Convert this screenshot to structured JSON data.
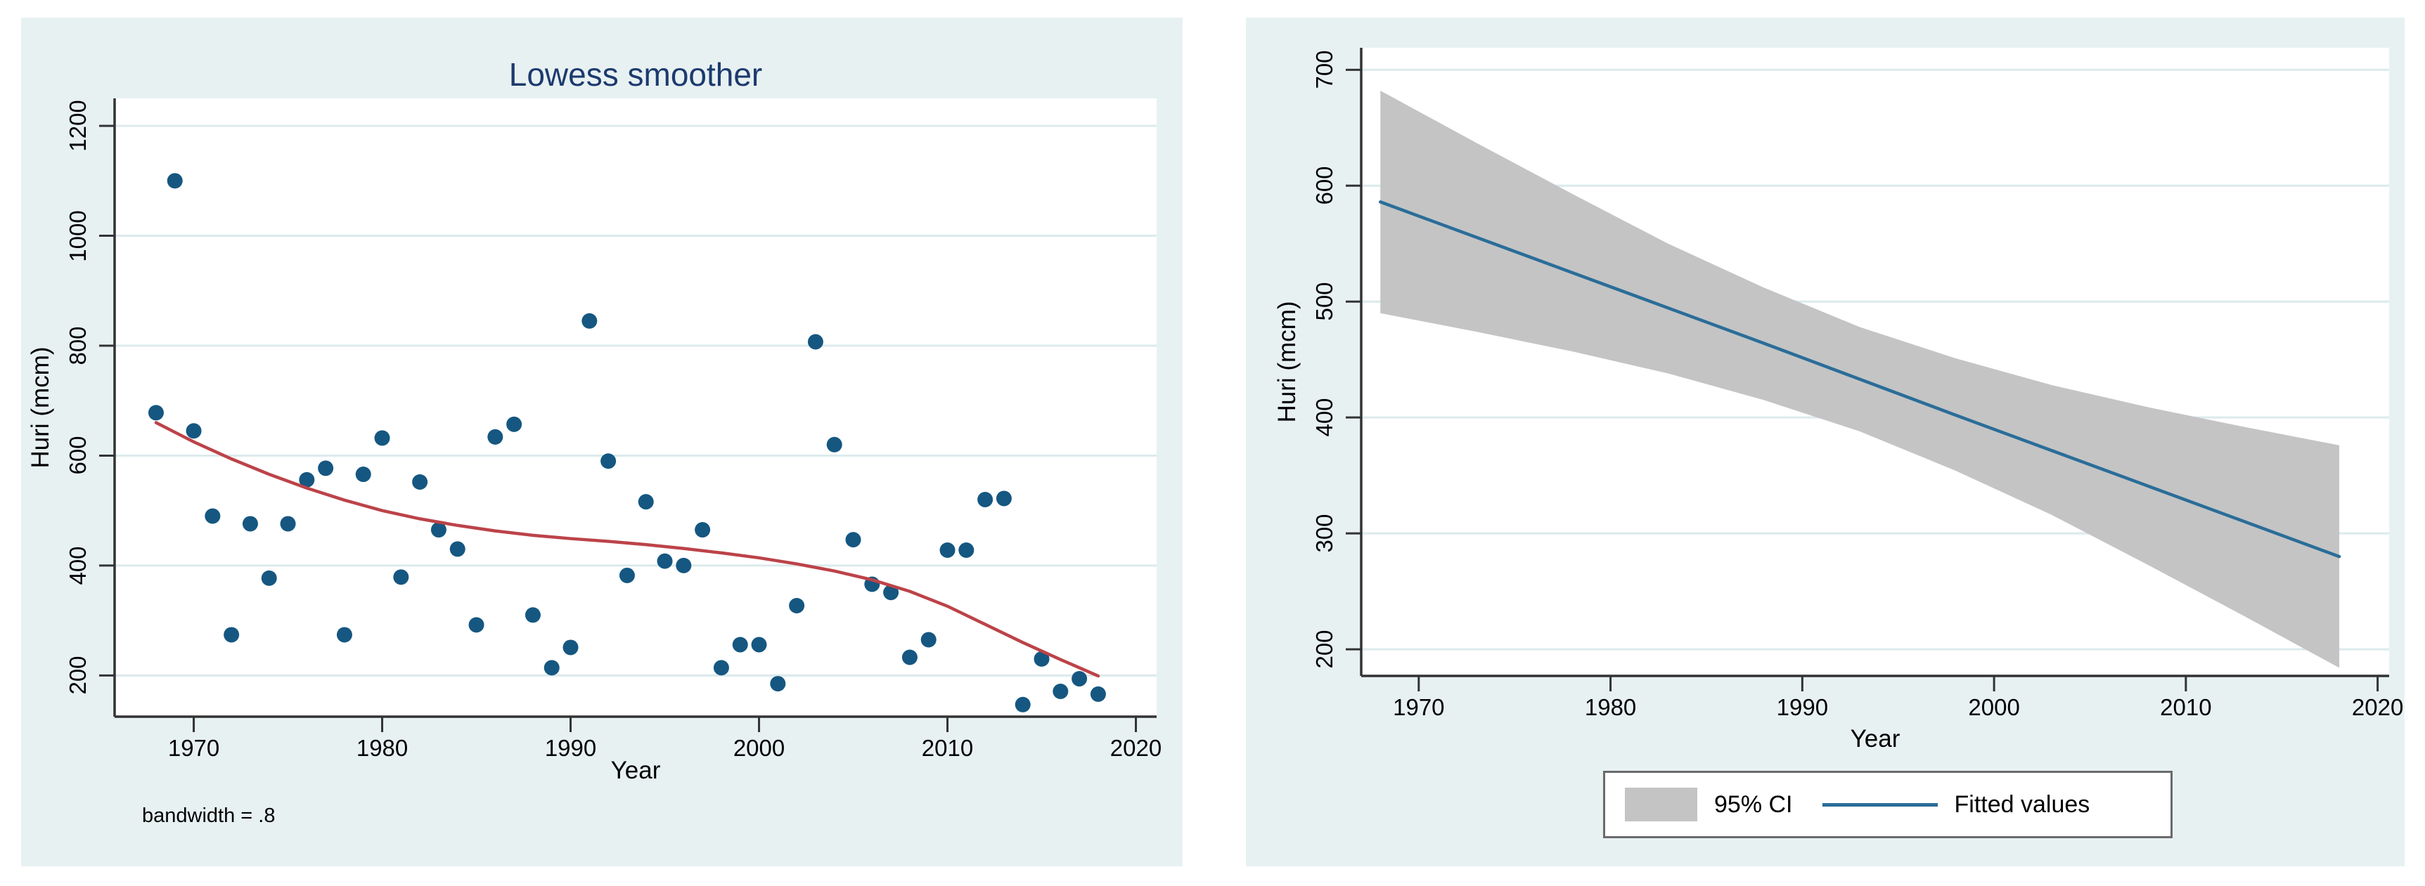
{
  "figure": {
    "background": "#ffffff",
    "panel_background": "#e8f1f2"
  },
  "colors": {
    "marker": "#155781",
    "lowess_line": "#bc4349",
    "fitted_line": "#2a6d99",
    "ci_fill": "#c4c4c4",
    "grid": "#dceaec",
    "axis": "#333333",
    "title_text": "#1c3a6e",
    "legend_border": "#6a6a6a"
  },
  "chart_data": [
    {
      "type": "scatter",
      "title": "Lowess smoother",
      "xlabel": "Year",
      "ylabel": "Huri (mcm)",
      "note": "bandwidth = .8",
      "xlim": [
        1965.8,
        2021.1
      ],
      "ylim": [
        125,
        1250
      ],
      "x_ticks": [
        1970,
        1980,
        1990,
        2000,
        2010,
        2020
      ],
      "y_ticks": [
        200,
        400,
        600,
        800,
        1000,
        1200
      ],
      "grid": "horizontal",
      "legend_position": "none",
      "series": [
        {
          "name": "Huri (mcm)",
          "kind": "points",
          "color": "#155781",
          "points": [
            [
              1968,
              678
            ],
            [
              1969,
              1100
            ],
            [
              1970,
              645
            ],
            [
              1971,
              490
            ],
            [
              1972,
              274
            ],
            [
              1973,
              476
            ],
            [
              1974,
              377
            ],
            [
              1975,
              476
            ],
            [
              1976,
              556
            ],
            [
              1977,
              577
            ],
            [
              1978,
              274
            ],
            [
              1979,
              566
            ],
            [
              1980,
              632
            ],
            [
              1981,
              379
            ],
            [
              1982,
              552
            ],
            [
              1983,
              465
            ],
            [
              1984,
              430
            ],
            [
              1985,
              292
            ],
            [
              1986,
              634
            ],
            [
              1987,
              657
            ],
            [
              1988,
              310
            ],
            [
              1989,
              214
            ],
            [
              1990,
              251
            ],
            [
              1991,
              845
            ],
            [
              1992,
              590
            ],
            [
              1993,
              382
            ],
            [
              1994,
              516
            ],
            [
              1995,
              408
            ],
            [
              1996,
              400
            ],
            [
              1997,
              465
            ],
            [
              1998,
              214
            ],
            [
              1999,
              256
            ],
            [
              2000,
              256
            ],
            [
              2001,
              185
            ],
            [
              2002,
              327
            ],
            [
              2003,
              807
            ],
            [
              2004,
              620
            ],
            [
              2005,
              447
            ],
            [
              2006,
              366
            ],
            [
              2007,
              351
            ],
            [
              2008,
              233
            ],
            [
              2009,
              265
            ],
            [
              2010,
              428
            ],
            [
              2011,
              428
            ],
            [
              2012,
              520
            ],
            [
              2013,
              522
            ],
            [
              2014,
              147
            ],
            [
              2015,
              230
            ],
            [
              2016,
              171
            ],
            [
              2017,
              194
            ],
            [
              2018,
              166
            ]
          ]
        },
        {
          "name": "lowess smooth",
          "kind": "line",
          "color": "#bc4349",
          "points": [
            [
              1968,
              660
            ],
            [
              1970,
              625
            ],
            [
              1972,
              594
            ],
            [
              1974,
              566
            ],
            [
              1976,
              541
            ],
            [
              1978,
              519
            ],
            [
              1980,
              500
            ],
            [
              1982,
              485
            ],
            [
              1984,
              473
            ],
            [
              1986,
              463
            ],
            [
              1988,
              455
            ],
            [
              1990,
              449
            ],
            [
              1992,
              444
            ],
            [
              1994,
              438
            ],
            [
              1996,
              431
            ],
            [
              1998,
              423
            ],
            [
              2000,
              414
            ],
            [
              2002,
              403
            ],
            [
              2004,
              390
            ],
            [
              2006,
              374
            ],
            [
              2008,
              353
            ],
            [
              2010,
              326
            ],
            [
              2012,
              293
            ],
            [
              2014,
              260
            ],
            [
              2016,
              229
            ],
            [
              2018,
              199
            ]
          ]
        }
      ]
    },
    {
      "type": "line",
      "title": "",
      "xlabel": "Year",
      "ylabel": "Huri (mcm)",
      "xlim": [
        1967,
        2020.6
      ],
      "ylim": [
        177,
        719
      ],
      "x_ticks": [
        1970,
        1980,
        1990,
        2000,
        2010,
        2020
      ],
      "y_ticks": [
        200,
        300,
        400,
        500,
        600,
        700
      ],
      "grid": "horizontal",
      "legend_position": "bottom-center",
      "band": {
        "name": "95% CI",
        "color": "#c4c4c4",
        "x": [
          1968,
          1973,
          1978,
          1983,
          1988,
          1993,
          1998,
          2003,
          2008,
          2013,
          2018
        ],
        "upper": [
          682,
          637,
          593,
          550,
          512,
          478,
          451,
          428,
          409,
          392,
          376
        ],
        "lower": [
          490,
          474,
          457,
          438,
          415,
          388,
          354,
          316,
          273,
          229,
          184
        ]
      },
      "series": [
        {
          "name": "Fitted values",
          "kind": "line",
          "color": "#2a6d99",
          "points": [
            [
              1968,
              586
            ],
            [
              1978,
              525
            ],
            [
              1988,
              464
            ],
            [
              1998,
              402
            ],
            [
              2008,
              341
            ],
            [
              2018,
              280
            ]
          ]
        }
      ],
      "legend": [
        {
          "label": "95% CI",
          "swatch": "area"
        },
        {
          "label": "Fitted values",
          "swatch": "line"
        }
      ]
    }
  ]
}
